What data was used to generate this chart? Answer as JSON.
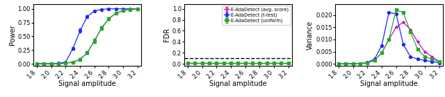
{
  "x": [
    1.8,
    1.9,
    2.0,
    2.1,
    2.2,
    2.3,
    2.4,
    2.5,
    2.6,
    2.7,
    2.8,
    2.9,
    3.0,
    3.1,
    3.2
  ],
  "power_avg": [
    0.0,
    0.0,
    0.0,
    0.0,
    0.01,
    0.03,
    0.08,
    0.2,
    0.42,
    0.65,
    0.82,
    0.92,
    0.97,
    0.99,
    1.0
  ],
  "power_ttest": [
    0.0,
    0.0,
    0.0,
    0.01,
    0.03,
    0.28,
    0.6,
    0.86,
    0.96,
    0.99,
    1.0,
    1.0,
    1.0,
    1.0,
    1.0
  ],
  "power_uniform": [
    0.0,
    0.0,
    0.0,
    0.0,
    0.01,
    0.03,
    0.08,
    0.2,
    0.42,
    0.65,
    0.82,
    0.92,
    0.97,
    0.99,
    1.0
  ],
  "power_avg_err": [
    0.0,
    0.0,
    0.0,
    0.001,
    0.003,
    0.008,
    0.015,
    0.025,
    0.035,
    0.035,
    0.025,
    0.015,
    0.008,
    0.004,
    0.001
  ],
  "power_ttest_err": [
    0.0,
    0.0,
    0.001,
    0.003,
    0.008,
    0.028,
    0.038,
    0.025,
    0.015,
    0.008,
    0.003,
    0.001,
    0.001,
    0.0,
    0.0
  ],
  "power_uniform_err": [
    0.0,
    0.0,
    0.0,
    0.001,
    0.003,
    0.008,
    0.015,
    0.025,
    0.035,
    0.035,
    0.025,
    0.015,
    0.008,
    0.004,
    0.001
  ],
  "fdr_avg": [
    0.008,
    0.008,
    0.008,
    0.008,
    0.008,
    0.008,
    0.008,
    0.008,
    0.008,
    0.008,
    0.008,
    0.008,
    0.008,
    0.008,
    0.008
  ],
  "fdr_ttest": [
    0.008,
    0.008,
    0.008,
    0.008,
    0.008,
    0.008,
    0.008,
    0.008,
    0.008,
    0.008,
    0.008,
    0.008,
    0.008,
    0.008,
    0.008
  ],
  "fdr_uniform": [
    0.012,
    0.012,
    0.012,
    0.012,
    0.012,
    0.012,
    0.012,
    0.012,
    0.012,
    0.012,
    0.012,
    0.012,
    0.012,
    0.012,
    0.012
  ],
  "fdr_avg_err": [
    0.002,
    0.002,
    0.002,
    0.002,
    0.002,
    0.002,
    0.002,
    0.002,
    0.002,
    0.002,
    0.002,
    0.002,
    0.002,
    0.002,
    0.002
  ],
  "fdr_ttest_err": [
    0.002,
    0.002,
    0.002,
    0.002,
    0.002,
    0.002,
    0.002,
    0.002,
    0.002,
    0.002,
    0.002,
    0.002,
    0.002,
    0.002,
    0.002
  ],
  "fdr_uniform_err": [
    0.002,
    0.002,
    0.002,
    0.002,
    0.002,
    0.002,
    0.002,
    0.002,
    0.002,
    0.002,
    0.002,
    0.002,
    0.002,
    0.002,
    0.002
  ],
  "var_avg": [
    0.0,
    0.0001,
    0.0001,
    0.0002,
    0.0005,
    0.0015,
    0.0045,
    0.01,
    0.015,
    0.017,
    0.014,
    0.009,
    0.005,
    0.003,
    0.001
  ],
  "var_ttest": [
    0.0,
    0.0001,
    0.0001,
    0.0002,
    0.0006,
    0.002,
    0.0075,
    0.021,
    0.0205,
    0.008,
    0.003,
    0.002,
    0.0015,
    0.001,
    0.0005
  ],
  "var_uniform": [
    0.0,
    0.0001,
    0.0001,
    0.0002,
    0.0005,
    0.0015,
    0.0045,
    0.01,
    0.022,
    0.021,
    0.013,
    0.006,
    0.003,
    0.002,
    0.001
  ],
  "color_avg": "#CC00CC",
  "color_ttest": "#2222FF",
  "color_uniform": "#22AA22",
  "marker_avg": "*",
  "marker_ttest": "o",
  "marker_uniform": "s",
  "label_avg": "E-AdaDetect (avg. score)",
  "label_ttest": "E-AdaDetect (t-test)",
  "label_uniform": "E-AdaDetect (uniform)",
  "fdr_threshold": 0.1,
  "xlabel": "Signal amplitude",
  "ylabel_power": "Power",
  "ylabel_fdr": "FDR",
  "ylabel_var": "Variance",
  "xlim": [
    1.75,
    3.25
  ],
  "xticks": [
    1.8,
    2.0,
    2.2,
    2.4,
    2.6,
    2.8,
    3.0,
    3.2
  ],
  "ylim_power": [
    -0.04,
    1.09
  ],
  "ylim_fdr": [
    -0.04,
    1.09
  ],
  "ylim_var": [
    -0.0008,
    0.0245
  ],
  "yticks_power": [
    0.0,
    0.25,
    0.5,
    0.75,
    1.0
  ],
  "yticks_fdr": [
    0.0,
    0.2,
    0.4,
    0.6,
    0.8,
    1.0
  ],
  "yticks_var": [
    0.0,
    0.005,
    0.01,
    0.015,
    0.02
  ]
}
